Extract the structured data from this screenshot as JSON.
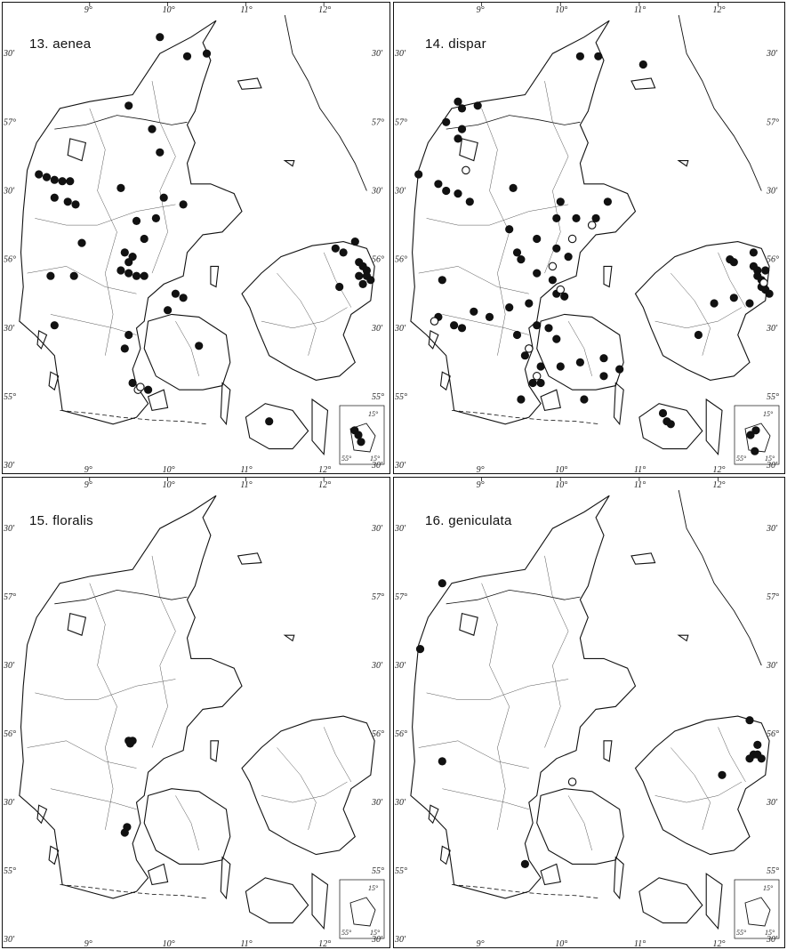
{
  "plate": {
    "maps": [
      {
        "id": "p13",
        "title": "13. aenea",
        "records_filled": [
          [
            9.9,
            57.62
          ],
          [
            10.25,
            57.48
          ],
          [
            10.5,
            57.5
          ],
          [
            9.5,
            57.12
          ],
          [
            9.8,
            56.95
          ],
          [
            9.9,
            56.78
          ],
          [
            8.35,
            56.62
          ],
          [
            8.45,
            56.6
          ],
          [
            8.55,
            56.58
          ],
          [
            8.65,
            56.57
          ],
          [
            8.75,
            56.57
          ],
          [
            8.55,
            56.45
          ],
          [
            8.72,
            56.42
          ],
          [
            8.82,
            56.4
          ],
          [
            9.4,
            56.52
          ],
          [
            9.95,
            56.45
          ],
          [
            10.2,
            56.4
          ],
          [
            9.6,
            56.28
          ],
          [
            9.85,
            56.3
          ],
          [
            9.7,
            56.15
          ],
          [
            8.9,
            56.12
          ],
          [
            9.5,
            55.98
          ],
          [
            9.45,
            56.05
          ],
          [
            9.55,
            56.02
          ],
          [
            9.4,
            55.92
          ],
          [
            9.5,
            55.9
          ],
          [
            9.6,
            55.88
          ],
          [
            9.7,
            55.88
          ],
          [
            8.5,
            55.88
          ],
          [
            8.8,
            55.88
          ],
          [
            10.1,
            55.75
          ],
          [
            10.2,
            55.72
          ],
          [
            10.0,
            55.63
          ],
          [
            8.55,
            55.52
          ],
          [
            9.5,
            55.45
          ],
          [
            9.45,
            55.35
          ],
          [
            10.4,
            55.37
          ],
          [
            9.75,
            55.05
          ],
          [
            9.55,
            55.1
          ],
          [
            12.15,
            56.08
          ],
          [
            12.25,
            56.05
          ],
          [
            12.4,
            56.13
          ],
          [
            12.45,
            55.98
          ],
          [
            12.5,
            55.95
          ],
          [
            12.55,
            55.92
          ],
          [
            12.45,
            55.88
          ],
          [
            12.55,
            55.88
          ],
          [
            12.6,
            55.85
          ],
          [
            12.5,
            55.82
          ],
          [
            12.2,
            55.8
          ],
          [
            11.3,
            54.82
          ],
          [
            14.88,
            55.12
          ],
          [
            14.95,
            55.1
          ],
          [
            15.0,
            55.07
          ]
        ],
        "records_open": [
          [
            9.62,
            55.05
          ],
          [
            9.65,
            55.07
          ]
        ],
        "has_sweden_coast": true
      },
      {
        "id": "p14",
        "title": "14. dispar",
        "records_filled": [
          [
            10.25,
            57.48
          ],
          [
            10.48,
            57.48
          ],
          [
            11.05,
            57.42
          ],
          [
            8.7,
            57.15
          ],
          [
            8.75,
            57.1
          ],
          [
            8.95,
            57.12
          ],
          [
            8.55,
            57.0
          ],
          [
            8.75,
            56.95
          ],
          [
            8.7,
            56.88
          ],
          [
            8.2,
            56.62
          ],
          [
            8.45,
            56.55
          ],
          [
            8.55,
            56.5
          ],
          [
            8.7,
            56.48
          ],
          [
            8.85,
            56.42
          ],
          [
            9.4,
            56.52
          ],
          [
            10.0,
            56.42
          ],
          [
            10.6,
            56.42
          ],
          [
            9.95,
            56.3
          ],
          [
            10.2,
            56.3
          ],
          [
            10.45,
            56.3
          ],
          [
            9.35,
            56.22
          ],
          [
            9.7,
            56.15
          ],
          [
            9.95,
            56.08
          ],
          [
            9.45,
            56.05
          ],
          [
            9.5,
            56.0
          ],
          [
            10.1,
            56.02
          ],
          [
            9.7,
            55.9
          ],
          [
            9.9,
            55.85
          ],
          [
            8.5,
            55.85
          ],
          [
            9.95,
            55.75
          ],
          [
            10.05,
            55.73
          ],
          [
            9.6,
            55.68
          ],
          [
            9.35,
            55.65
          ],
          [
            8.9,
            55.62
          ],
          [
            8.45,
            55.58
          ],
          [
            8.65,
            55.52
          ],
          [
            8.75,
            55.5
          ],
          [
            9.1,
            55.58
          ],
          [
            9.45,
            55.45
          ],
          [
            9.7,
            55.52
          ],
          [
            9.85,
            55.5
          ],
          [
            9.95,
            55.42
          ],
          [
            9.6,
            55.35
          ],
          [
            9.55,
            55.3
          ],
          [
            9.75,
            55.22
          ],
          [
            10.0,
            55.22
          ],
          [
            10.25,
            55.25
          ],
          [
            10.55,
            55.28
          ],
          [
            9.65,
            55.1
          ],
          [
            9.75,
            55.1
          ],
          [
            9.5,
            54.98
          ],
          [
            10.3,
            54.98
          ],
          [
            10.55,
            55.15
          ],
          [
            10.75,
            55.2
          ],
          [
            12.45,
            56.05
          ],
          [
            12.15,
            56.0
          ],
          [
            12.2,
            55.98
          ],
          [
            12.45,
            55.95
          ],
          [
            12.5,
            55.92
          ],
          [
            12.5,
            55.88
          ],
          [
            12.6,
            55.92
          ],
          [
            12.55,
            55.85
          ],
          [
            12.55,
            55.8
          ],
          [
            12.6,
            55.78
          ],
          [
            12.65,
            55.75
          ],
          [
            12.2,
            55.72
          ],
          [
            11.95,
            55.68
          ],
          [
            12.4,
            55.68
          ],
          [
            11.75,
            55.45
          ],
          [
            11.3,
            54.88
          ],
          [
            11.35,
            54.82
          ],
          [
            11.4,
            54.8
          ],
          [
            15.0,
            55.12
          ],
          [
            14.9,
            55.1
          ],
          [
            14.98,
            55.03
          ]
        ],
        "records_open": [
          [
            8.8,
            56.65
          ],
          [
            10.4,
            56.25
          ],
          [
            10.15,
            56.15
          ],
          [
            9.9,
            55.95
          ],
          [
            10.0,
            55.78
          ],
          [
            8.4,
            55.55
          ],
          [
            9.6,
            55.35
          ],
          [
            9.7,
            55.15
          ],
          [
            12.58,
            55.83
          ]
        ],
        "has_sweden_coast": true
      },
      {
        "id": "p15",
        "title": "15. floralis",
        "records_filled": [
          [
            9.5,
            55.95
          ],
          [
            9.52,
            55.93
          ],
          [
            9.55,
            55.95
          ],
          [
            9.48,
            55.32
          ],
          [
            9.45,
            55.28
          ]
        ],
        "records_open": [],
        "has_sweden_coast": false
      },
      {
        "id": "p16",
        "title": "16. geniculata",
        "records_filled": [
          [
            8.5,
            57.1
          ],
          [
            8.22,
            56.62
          ],
          [
            8.5,
            55.8
          ],
          [
            9.55,
            55.05
          ],
          [
            12.4,
            56.1
          ],
          [
            12.5,
            55.92
          ],
          [
            12.45,
            55.85
          ],
          [
            12.5,
            55.85
          ],
          [
            12.55,
            55.82
          ],
          [
            12.4,
            55.82
          ],
          [
            12.05,
            55.7
          ]
        ],
        "records_open": [
          [
            10.15,
            55.65
          ]
        ],
        "has_sweden_coast": true
      }
    ],
    "axes": {
      "lon_ticks": [
        "9°",
        "10°",
        "11°",
        "12°"
      ],
      "lat_ticks_left": [
        "30'",
        "57°",
        "30'",
        "56°",
        "30'",
        "55°",
        "30'"
      ],
      "lat_ticks_right": [
        "30'",
        "57°",
        "30'",
        "56°",
        "30'",
        "55°",
        "30'"
      ],
      "inset_labels": [
        "15°",
        "55°",
        "15°"
      ]
    },
    "colors": {
      "ink": "#111111",
      "paper": "#ffffff",
      "border": "#111111",
      "open_ring": "#111111"
    }
  }
}
